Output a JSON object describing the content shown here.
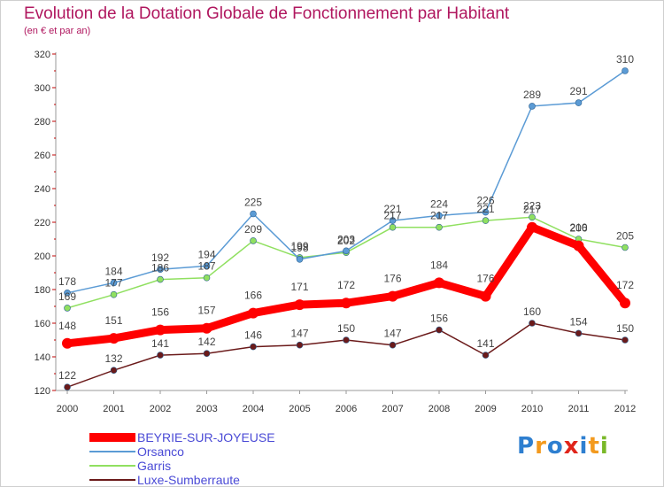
{
  "header": {
    "title": "Evolution de la Dotation Globale de Fonctionnement par Habitant",
    "subtitle": "(en € et par an)"
  },
  "logo": {
    "text": "Proxiti",
    "colors": [
      "#2e7fd0",
      "#f39a1e",
      "#2e7fd0",
      "#e0251b",
      "#2e7fd0",
      "#f39a1e",
      "#7ab929"
    ]
  },
  "chart_data": {
    "type": "line",
    "title": "Evolution de la Dotation Globale de Fonctionnement par Habitant",
    "subtitle": "(en € et par an)",
    "xlabel": "",
    "ylabel": "",
    "x": [
      "2000",
      "2001",
      "2002",
      "2003",
      "2004",
      "2005",
      "2006",
      "2007",
      "2008",
      "2009",
      "2010",
      "2011",
      "2012"
    ],
    "ylim": [
      120,
      320
    ],
    "yticks": [
      120,
      140,
      160,
      180,
      200,
      220,
      240,
      260,
      280,
      300,
      320
    ],
    "grid": false,
    "legend": "bottom-left",
    "series": [
      {
        "name": "BEYRIE-SUR-JOYEUSE",
        "color": "#ff0000",
        "values": [
          148,
          151,
          156,
          157,
          166,
          171,
          172,
          176,
          184,
          176,
          217,
          206,
          172
        ]
      },
      {
        "name": "Orsanco",
        "color": "#5b9bd5",
        "values": [
          178,
          184,
          192,
          194,
          225,
          198,
          203,
          221,
          224,
          226,
          289,
          291,
          310
        ]
      },
      {
        "name": "Garris",
        "color": "#90e060",
        "values": [
          169,
          177,
          186,
          187,
          209,
          199,
          202,
          217,
          217,
          221,
          223,
          210,
          205
        ]
      },
      {
        "name": "Luxe-Sumberraute",
        "color": "#6b1a1a",
        "values": [
          122,
          132,
          141,
          142,
          146,
          147,
          150,
          147,
          156,
          141,
          160,
          154,
          150
        ]
      }
    ]
  }
}
